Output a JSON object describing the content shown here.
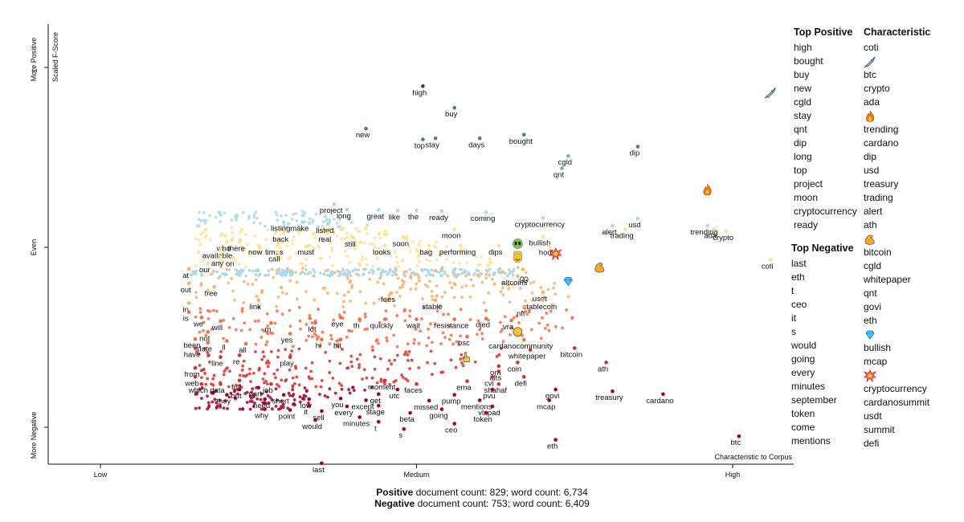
{
  "chart_data": {
    "type": "scatter",
    "axes": {
      "x_label": "Characteristic to Corpus",
      "x_ticks": [
        "Low",
        "Medium",
        "High"
      ],
      "y_label": "Scaled F-Score",
      "y_tick_top": "1",
      "y_side_labels": [
        "More Positive",
        "Even",
        "More Negative"
      ]
    },
    "colors": {
      "scale": [
        "#313695",
        "#4575b4",
        "#74add1",
        "#abd9e9",
        "#fee090",
        "#fdae61",
        "#f46d43",
        "#d73027",
        "#a50026"
      ]
    },
    "labeled_points": [
      {
        "t": "high",
        "x": 0.51,
        "y": 0.948
      },
      {
        "t": "buy",
        "x": 0.56,
        "y": 0.888
      },
      {
        "t": "new",
        "x": 0.42,
        "y": 0.83
      },
      {
        "t": "bought",
        "x": 0.67,
        "y": 0.813
      },
      {
        "t": "top",
        "x": 0.51,
        "y": 0.8
      },
      {
        "t": "stay",
        "x": 0.53,
        "y": 0.803
      },
      {
        "t": "days",
        "x": 0.6,
        "y": 0.803
      },
      {
        "t": "cgld",
        "x": 0.74,
        "y": 0.754
      },
      {
        "t": "qnt",
        "x": 0.73,
        "y": 0.72
      },
      {
        "t": "dip",
        "x": 0.85,
        "y": 0.78
      },
      {
        "t": "coti",
        "x": 1.06,
        "y": 0.465
      },
      {
        "t": "project",
        "x": 0.37,
        "y": 0.62
      },
      {
        "t": "long",
        "x": 0.39,
        "y": 0.605
      },
      {
        "t": "great",
        "x": 0.44,
        "y": 0.604
      },
      {
        "t": "the",
        "x": 0.5,
        "y": 0.603
      },
      {
        "t": "like",
        "x": 0.47,
        "y": 0.602
      },
      {
        "t": "ready",
        "x": 0.54,
        "y": 0.601
      },
      {
        "t": "coming",
        "x": 0.61,
        "y": 0.598
      },
      {
        "t": "cryptocurrency",
        "x": 0.7,
        "y": 0.582
      },
      {
        "t": "usd",
        "x": 0.85,
        "y": 0.58
      },
      {
        "t": "alert",
        "x": 0.81,
        "y": 0.56
      },
      {
        "t": "trading",
        "x": 0.83,
        "y": 0.55
      },
      {
        "t": "trending",
        "x": 0.96,
        "y": 0.56
      },
      {
        "t": "ada",
        "x": 0.97,
        "y": 0.55
      },
      {
        "t": "crypto",
        "x": 0.99,
        "y": 0.545
      },
      {
        "t": "listing",
        "x": 0.29,
        "y": 0.57
      },
      {
        "t": "make",
        "x": 0.32,
        "y": 0.57
      },
      {
        "t": "listed",
        "x": 0.36,
        "y": 0.565
      },
      {
        "t": "back",
        "x": 0.29,
        "y": 0.54
      },
      {
        "t": "real",
        "x": 0.36,
        "y": 0.54
      },
      {
        "t": "moon",
        "x": 0.56,
        "y": 0.55
      },
      {
        "t": "still",
        "x": 0.4,
        "y": 0.527
      },
      {
        "t": "soon",
        "x": 0.48,
        "y": 0.528
      },
      {
        "t": "bullish",
        "x": 0.7,
        "y": 0.53
      },
      {
        "t": "performing",
        "x": 0.57,
        "y": 0.505
      },
      {
        "t": "dips",
        "x": 0.63,
        "y": 0.505
      },
      {
        "t": "hodl",
        "x": 0.71,
        "y": 0.503
      },
      {
        "t": "who",
        "x": 0.2,
        "y": 0.515
      },
      {
        "t": "there",
        "x": 0.22,
        "y": 0.515
      },
      {
        "t": "now",
        "x": 0.25,
        "y": 0.505
      },
      {
        "t": "times",
        "x": 0.28,
        "y": 0.505
      },
      {
        "t": "must",
        "x": 0.33,
        "y": 0.505
      },
      {
        "t": "looks",
        "x": 0.45,
        "y": 0.505
      },
      {
        "t": "bag",
        "x": 0.52,
        "y": 0.505
      },
      {
        "t": "available",
        "x": 0.19,
        "y": 0.494
      },
      {
        "t": "call",
        "x": 0.28,
        "y": 0.486
      },
      {
        "t": "any",
        "x": 0.19,
        "y": 0.473
      },
      {
        "t": "on",
        "x": 0.21,
        "y": 0.472
      },
      {
        "t": "our",
        "x": 0.17,
        "y": 0.455
      },
      {
        "t": "at",
        "x": 0.14,
        "y": 0.44
      },
      {
        "t": "altcoins",
        "x": 0.66,
        "y": 0.42
      },
      {
        "t": "out",
        "x": 0.14,
        "y": 0.4
      },
      {
        "t": "free",
        "x": 0.18,
        "y": 0.39
      },
      {
        "t": "fees",
        "x": 0.46,
        "y": 0.373
      },
      {
        "t": "usdt",
        "x": 0.7,
        "y": 0.375
      },
      {
        "t": "link",
        "x": 0.25,
        "y": 0.353
      },
      {
        "t": "stable",
        "x": 0.53,
        "y": 0.353
      },
      {
        "t": "stablecoin",
        "x": 0.7,
        "y": 0.353
      },
      {
        "t": "in",
        "x": 0.14,
        "y": 0.345
      },
      {
        "t": "nft",
        "x": 0.67,
        "y": 0.334
      },
      {
        "t": "is",
        "x": 0.14,
        "y": 0.32
      },
      {
        "t": "we",
        "x": 0.16,
        "y": 0.305
      },
      {
        "t": "will",
        "x": 0.19,
        "y": 0.295
      },
      {
        "t": "eye",
        "x": 0.38,
        "y": 0.305
      },
      {
        "t": "th",
        "x": 0.41,
        "y": 0.3
      },
      {
        "t": "quickly",
        "x": 0.45,
        "y": 0.3
      },
      {
        "t": "wait",
        "x": 0.5,
        "y": 0.3
      },
      {
        "t": "resistance",
        "x": 0.56,
        "y": 0.3
      },
      {
        "t": "djed",
        "x": 0.61,
        "y": 0.302
      },
      {
        "t": "vra",
        "x": 0.65,
        "y": 0.297
      },
      {
        "t": "m",
        "x": 0.27,
        "y": 0.29
      },
      {
        "t": "lot",
        "x": 0.34,
        "y": 0.29
      },
      {
        "t": "not",
        "x": 0.17,
        "y": 0.265
      },
      {
        "t": "yes",
        "x": 0.3,
        "y": 0.26
      },
      {
        "t": "bsc",
        "x": 0.58,
        "y": 0.252
      },
      {
        "t": "been",
        "x": 0.15,
        "y": 0.245
      },
      {
        "t": "hi",
        "x": 0.35,
        "y": 0.244
      },
      {
        "t": "bit",
        "x": 0.38,
        "y": 0.244
      },
      {
        "t": "cardanocommunity",
        "x": 0.67,
        "y": 0.243
      },
      {
        "t": "ll",
        "x": 0.2,
        "y": 0.24
      },
      {
        "t": "date",
        "x": 0.17,
        "y": 0.235
      },
      {
        "t": "all",
        "x": 0.23,
        "y": 0.232
      },
      {
        "t": "have",
        "x": 0.15,
        "y": 0.22
      },
      {
        "t": "bitcoin",
        "x": 0.75,
        "y": 0.22
      },
      {
        "t": "whitepaper",
        "x": 0.68,
        "y": 0.215
      },
      {
        "t": "re",
        "x": 0.22,
        "y": 0.2
      },
      {
        "t": "line",
        "x": 0.19,
        "y": 0.195
      },
      {
        "t": "play",
        "x": 0.3,
        "y": 0.195
      },
      {
        "t": "ath",
        "x": 0.8,
        "y": 0.18
      },
      {
        "t": "coin",
        "x": 0.66,
        "y": 0.18
      },
      {
        "t": "from",
        "x": 0.15,
        "y": 0.165
      },
      {
        "t": "orn",
        "x": 0.63,
        "y": 0.17
      },
      {
        "t": "alts",
        "x": 0.63,
        "y": 0.155
      },
      {
        "t": "web",
        "x": 0.15,
        "y": 0.14
      },
      {
        "t": "cvi",
        "x": 0.62,
        "y": 0.14
      },
      {
        "t": "defi",
        "x": 0.67,
        "y": 0.14
      },
      {
        "t": "moment",
        "x": 0.45,
        "y": 0.13
      },
      {
        "t": "full",
        "x": 0.22,
        "y": 0.13
      },
      {
        "t": "ema",
        "x": 0.58,
        "y": 0.128
      },
      {
        "t": "which",
        "x": 0.16,
        "y": 0.12
      },
      {
        "t": "data",
        "x": 0.19,
        "y": 0.12
      },
      {
        "t": "job",
        "x": 0.27,
        "y": 0.12
      },
      {
        "t": "faces",
        "x": 0.5,
        "y": 0.12
      },
      {
        "t": "shahaf",
        "x": 0.63,
        "y": 0.12
      },
      {
        "t": "part",
        "x": 0.25,
        "y": 0.11
      },
      {
        "t": "but",
        "x": 0.22,
        "y": 0.105
      },
      {
        "t": "utc",
        "x": 0.47,
        "y": 0.105
      },
      {
        "t": "pvu",
        "x": 0.62,
        "y": 0.105
      },
      {
        "t": "govi",
        "x": 0.72,
        "y": 0.105
      },
      {
        "t": "treasury",
        "x": 0.81,
        "y": 0.1
      },
      {
        "t": "they",
        "x": 0.2,
        "y": 0.09
      },
      {
        "t": "short",
        "x": 0.29,
        "y": 0.09
      },
      {
        "t": "get",
        "x": 0.44,
        "y": 0.092
      },
      {
        "t": "pump",
        "x": 0.56,
        "y": 0.09
      },
      {
        "t": "cardano",
        "x": 0.89,
        "y": 0.092
      },
      {
        "t": "need",
        "x": 0.26,
        "y": 0.078
      },
      {
        "t": "low",
        "x": 0.33,
        "y": 0.078
      },
      {
        "t": "you",
        "x": 0.38,
        "y": 0.08
      },
      {
        "t": "except",
        "x": 0.42,
        "y": 0.075
      },
      {
        "t": "missed",
        "x": 0.52,
        "y": 0.074
      },
      {
        "t": "mentions",
        "x": 0.6,
        "y": 0.075
      },
      {
        "t": "mcap",
        "x": 0.71,
        "y": 0.075
      },
      {
        "t": "it",
        "x": 0.33,
        "y": 0.06
      },
      {
        "t": "stage",
        "x": 0.44,
        "y": 0.06
      },
      {
        "t": "every",
        "x": 0.39,
        "y": 0.058
      },
      {
        "t": "vlxpad",
        "x": 0.62,
        "y": 0.058
      },
      {
        "t": "why",
        "x": 0.26,
        "y": 0.05
      },
      {
        "t": "point",
        "x": 0.3,
        "y": 0.048
      },
      {
        "t": "sell",
        "x": 0.35,
        "y": 0.045
      },
      {
        "t": "going",
        "x": 0.54,
        "y": 0.05
      },
      {
        "t": "beta",
        "x": 0.49,
        "y": 0.04
      },
      {
        "t": "token",
        "x": 0.61,
        "y": 0.04
      },
      {
        "t": "minutes",
        "x": 0.41,
        "y": 0.028
      },
      {
        "t": "would",
        "x": 0.34,
        "y": 0.02
      },
      {
        "t": "t",
        "x": 0.44,
        "y": 0.015
      },
      {
        "t": "ceo",
        "x": 0.56,
        "y": 0.01
      },
      {
        "t": "s",
        "x": 0.48,
        "y": -0.005
      },
      {
        "t": "btc",
        "x": 1.01,
        "y": -0.025
      },
      {
        "t": "eth",
        "x": 0.72,
        "y": -0.035
      },
      {
        "t": "last",
        "x": 0.35,
        "y": -0.1
      }
    ],
    "emoji_points": [
      {
        "icon": "rocket",
        "x": 1.06,
        "y": 0.93
      },
      {
        "icon": "fire",
        "x": 0.96,
        "y": 0.66
      },
      {
        "icon": "alien",
        "x": 0.66,
        "y": 0.51
      },
      {
        "icon": "ring",
        "x": 0.66,
        "y": 0.48
      },
      {
        "icon": "smile",
        "x": 0.66,
        "y": 0.47
      },
      {
        "icon": "boom",
        "x": 0.72,
        "y": 0.482
      },
      {
        "icon": "muscle",
        "x": 0.79,
        "y": 0.445
      },
      {
        "icon": "gem",
        "x": 0.74,
        "y": 0.405
      },
      {
        "icon": "eyes",
        "x": 0.67,
        "y": 0.41
      },
      {
        "icon": "circle",
        "x": 0.66,
        "y": 0.265
      },
      {
        "icon": "hand",
        "x": 0.58,
        "y": 0.195
      }
    ]
  },
  "sidebar": {
    "top_positive_title": "Top Positive",
    "top_positive": [
      "high",
      "bought",
      "buy",
      "new",
      "cgld",
      "stay",
      "qnt",
      "dip",
      "long",
      "top",
      "project",
      "moon",
      "cryptocurrency",
      "ready"
    ],
    "top_negative_title": "Top Negative",
    "top_negative": [
      "last",
      "eth",
      "t",
      "ceo",
      "it",
      "s",
      "would",
      "going",
      "every",
      "minutes",
      "september",
      "token",
      "come",
      "mentions"
    ],
    "characteristic_title": "Characteristic",
    "characteristic": [
      {
        "t": "coti"
      },
      {
        "t": "",
        "icon": "rocket"
      },
      {
        "t": "btc"
      },
      {
        "t": "crypto"
      },
      {
        "t": "ada"
      },
      {
        "t": "",
        "icon": "fire"
      },
      {
        "t": "trending"
      },
      {
        "t": "cardano"
      },
      {
        "t": "dip"
      },
      {
        "t": "usd"
      },
      {
        "t": "treasury"
      },
      {
        "t": "trading"
      },
      {
        "t": "alert"
      },
      {
        "t": "ath"
      },
      {
        "t": "",
        "icon": "muscle"
      },
      {
        "t": "bitcoin"
      },
      {
        "t": "cgld"
      },
      {
        "t": "whitepaper"
      },
      {
        "t": "qnt"
      },
      {
        "t": "govi"
      },
      {
        "t": "eth"
      },
      {
        "t": "",
        "icon": "gem"
      },
      {
        "t": "bullish"
      },
      {
        "t": "mcap"
      },
      {
        "t": "",
        "icon": "boom"
      },
      {
        "t": "cryptocurrency"
      },
      {
        "t": "cardanosummit"
      },
      {
        "t": "usdt"
      },
      {
        "t": "summit"
      },
      {
        "t": "defi"
      }
    ]
  },
  "footer": {
    "pos_word": "Positive",
    "pos_rest": "document count: 829; word count: 6,734",
    "neg_word": "Negative",
    "neg_rest": "document count: 753; word count: 6,409"
  }
}
